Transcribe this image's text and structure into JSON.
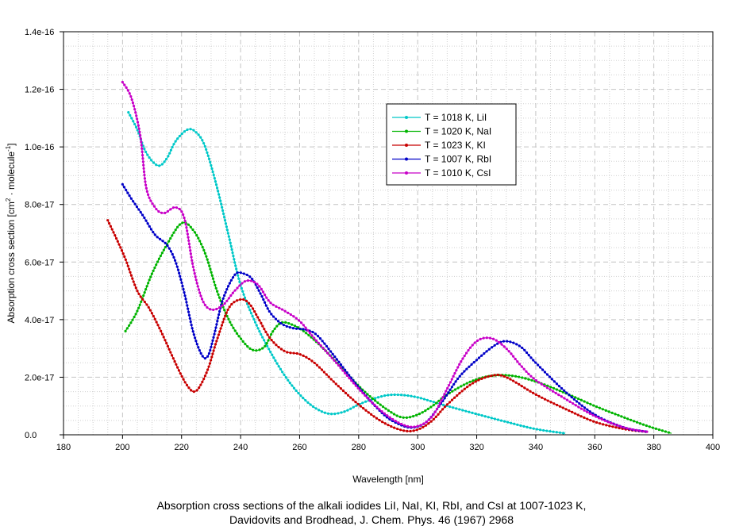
{
  "chart_data": {
    "type": "line",
    "title": "",
    "xlabel": "Wavelength [nm]",
    "ylabel_main": "Absorption cross section [cm",
    "ylabel_sup1": "2",
    "ylabel_mid": " · molecule",
    "ylabel_sup2": "-1",
    "ylabel_end": "]",
    "xlim": [
      180,
      400
    ],
    "ylim": [
      0,
      1.4e-16
    ],
    "x_ticks": [
      180,
      200,
      220,
      240,
      260,
      280,
      300,
      320,
      340,
      360,
      380,
      400
    ],
    "x_tick_labels": [
      "180",
      "200",
      "220",
      "240",
      "260",
      "280",
      "300",
      "320",
      "340",
      "360",
      "380",
      "400"
    ],
    "y_ticks": [
      0,
      2e-17,
      4e-17,
      6e-17,
      8e-17,
      1e-16,
      1.2e-16,
      1.4e-16
    ],
    "y_tick_labels": [
      "0.0",
      "2.0e-17",
      "4.0e-17",
      "6.0e-17",
      "8.0e-17",
      "1.0e-16",
      "1.2e-16",
      "1.4e-16"
    ],
    "grid": true,
    "legend_position": "upper-center-right",
    "series": [
      {
        "name": "T = 1018 K, LiI",
        "color": "#00c8c8",
        "x": [
          202,
          205,
          208,
          212,
          215,
          218,
          222,
          225,
          228,
          232,
          236,
          240,
          245,
          250,
          255,
          260,
          265,
          270,
          275,
          280,
          285,
          290,
          295,
          300,
          305,
          310,
          320,
          330,
          340,
          350
        ],
        "y": [
          1.12e-16,
          1.06e-16,
          9.8e-17,
          9.35e-17,
          9.6e-17,
          1.02e-16,
          1.06e-16,
          1.05e-16,
          1e-16,
          8.6e-17,
          6.9e-17,
          5.2e-17,
          3.9e-17,
          2.9e-17,
          2.05e-17,
          1.4e-17,
          9.5e-18,
          7.3e-18,
          8e-18,
          1.05e-17,
          1.25e-17,
          1.38e-17,
          1.38e-17,
          1.3e-17,
          1.15e-17,
          1e-17,
          7.2e-18,
          4.5e-18,
          2e-18,
          5e-19
        ]
      },
      {
        "name": "T = 1020 K, NaI",
        "color": "#00b400",
        "x": [
          201,
          205,
          210,
          215,
          220,
          224,
          228,
          232,
          236,
          240,
          244,
          248,
          251,
          254,
          258,
          262,
          268,
          275,
          282,
          290,
          295,
          300,
          305,
          310,
          318,
          325,
          332,
          340,
          350,
          360,
          370,
          378,
          386
        ],
        "y": [
          3.6e-17,
          4.3e-17,
          5.6e-17,
          6.6e-17,
          7.35e-17,
          7.1e-17,
          6.3e-17,
          5e-17,
          4e-17,
          3.35e-17,
          2.95e-17,
          3.05e-17,
          3.6e-17,
          3.9e-17,
          3.8e-17,
          3.55e-17,
          3e-17,
          2.25e-17,
          1.5e-17,
          8.5e-18,
          6e-18,
          7e-18,
          1e-17,
          1.4e-17,
          1.85e-17,
          2.05e-17,
          2.05e-17,
          1.85e-17,
          1.45e-17,
          1e-17,
          6e-18,
          3e-18,
          5e-19
        ]
      },
      {
        "name": "T = 1023 K, KI",
        "color": "#c80000",
        "x": [
          195,
          198,
          201,
          205,
          209,
          213,
          217,
          220,
          222,
          224,
          226,
          229,
          232,
          236,
          240,
          243,
          246,
          250,
          255,
          260,
          265,
          272,
          280,
          288,
          295,
          300,
          305,
          310,
          318,
          325,
          330,
          340,
          350,
          360,
          370,
          378
        ],
        "y": [
          7.45e-17,
          6.8e-17,
          6.1e-17,
          5e-17,
          4.4e-17,
          3.6e-17,
          2.7e-17,
          2.05e-17,
          1.7e-17,
          1.5e-17,
          1.65e-17,
          2.3e-17,
          3.3e-17,
          4.4e-17,
          4.7e-17,
          4.55e-17,
          4.05e-17,
          3.35e-17,
          2.9e-17,
          2.8e-17,
          2.5e-17,
          1.8e-17,
          1.05e-17,
          4.5e-18,
          1.5e-18,
          1.8e-18,
          5e-18,
          1.05e-17,
          1.75e-17,
          2.05e-17,
          2e-17,
          1.4e-17,
          9e-18,
          4.5e-18,
          2e-18,
          1e-18
        ]
      },
      {
        "name": "T = 1007 K, RbI",
        "color": "#0000c8",
        "x": [
          200,
          203,
          207,
          211,
          215,
          218,
          221,
          224,
          227,
          229,
          231,
          234,
          238,
          241,
          244,
          247,
          250,
          254,
          258,
          262,
          266,
          272,
          280,
          288,
          293,
          298,
          303,
          308,
          314,
          320,
          326,
          330,
          335,
          340,
          350,
          360,
          370,
          378
        ],
        "y": [
          8.7e-17,
          8.2e-17,
          7.6e-17,
          6.95e-17,
          6.6e-17,
          6e-17,
          4.9e-17,
          3.55e-17,
          2.75e-17,
          2.75e-17,
          3.45e-17,
          4.7e-17,
          5.55e-17,
          5.6e-17,
          5.4e-17,
          4.85e-17,
          4.25e-17,
          3.85e-17,
          3.7e-17,
          3.65e-17,
          3.45e-17,
          2.7e-17,
          1.65e-17,
          7.5e-18,
          4e-18,
          2.5e-18,
          4.5e-18,
          1.1e-17,
          2e-17,
          2.6e-17,
          3.1e-17,
          3.25e-17,
          3.05e-17,
          2.5e-17,
          1.5e-17,
          7e-18,
          2.5e-18,
          1e-18
        ]
      },
      {
        "name": "T = 1010 K, CsI",
        "color": "#c800c8",
        "x": [
          200,
          203,
          206,
          208,
          211,
          214,
          218,
          221,
          224,
          227,
          230,
          234,
          238,
          242,
          246,
          250,
          255,
          260,
          265,
          272,
          280,
          288,
          295,
          300,
          305,
          310,
          315,
          320,
          325,
          330,
          335,
          340,
          350,
          360,
          370,
          378
        ],
        "y": [
          1.225e-16,
          1.17e-16,
          1.04e-16,
          8.6e-17,
          7.9e-17,
          7.7e-17,
          7.9e-17,
          7.5e-17,
          5.8e-17,
          4.7e-17,
          4.35e-17,
          4.5e-17,
          5e-17,
          5.35e-17,
          5.2e-17,
          4.6e-17,
          4.3e-17,
          3.95e-17,
          3.35e-17,
          2.55e-17,
          1.6e-17,
          8e-18,
          3.5e-18,
          3e-18,
          6.5e-18,
          1.6e-17,
          2.6e-17,
          3.25e-17,
          3.35e-17,
          3e-17,
          2.4e-17,
          1.9e-17,
          1.25e-17,
          6.5e-18,
          2.5e-18,
          1e-18
        ]
      }
    ]
  },
  "caption": {
    "line1": "Absorption cross sections of the alkali iodides LiI, NaI, KI, RbI, and CsI at 1007-1023 K,",
    "line2": "Davidovits and Brodhead, J. Chem. Phys. 46 (1967) 2968"
  }
}
